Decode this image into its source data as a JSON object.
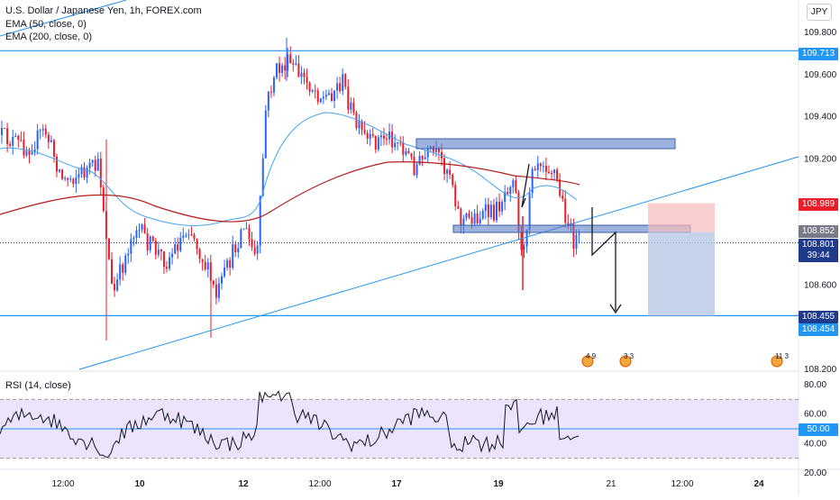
{
  "chart": {
    "title": "U.S. Dollar / Japanese Yen, 1h, FOREX.com",
    "indicators": [
      "EMA (50, close, 0)",
      "EMA (200, close, 0)"
    ],
    "currency_button": "JPY",
    "rsi_label": "RSI (14, close)"
  },
  "price_axis": {
    "ticks": [
      "109.800",
      "109.600",
      "109.400",
      "109.200",
      "108.600",
      "108.200"
    ],
    "tags": {
      "level_high": "109.713",
      "sl": "108.989",
      "entry": "108.852",
      "last": "108.801",
      "countdown": "39:44",
      "target": "108.455",
      "target2": "108.454"
    }
  },
  "rsi_axis": {
    "ticks": [
      "80.00",
      "60.00",
      "40.00",
      "20.00"
    ],
    "value_tag": "50.00"
  },
  "time_axis": {
    "labels": [
      "12:00",
      "10",
      "12",
      "12:00",
      "17",
      "19",
      "21",
      "12:00",
      "24"
    ],
    "bold": [
      false,
      true,
      true,
      false,
      true,
      true,
      false,
      false,
      true
    ]
  },
  "event_badges": [
    "4 9",
    "3 3",
    "11 3"
  ],
  "colors": {
    "up": "#2962ff",
    "down": "#e91e2b",
    "ema50": "#42a5f5",
    "ema200": "#b71c1c",
    "line": "#2196f3",
    "zone": "#5b7fc7",
    "rsi": "#131722",
    "rsi_band": "#ede3fb"
  },
  "chart_data": {
    "type": "candlestick",
    "symbol": "USDJPY",
    "timeframe": "1h",
    "ohlc_bars": 210,
    "price_range": [
      108.2,
      109.87
    ],
    "key_levels": {
      "resistance": 109.713,
      "support": 108.455,
      "current": 108.801,
      "stop": 108.989,
      "entry": 108.852
    },
    "rsi_range": [
      20,
      86
    ],
    "rsi_bands": [
      30,
      70
    ],
    "rsi_mid": 50
  }
}
